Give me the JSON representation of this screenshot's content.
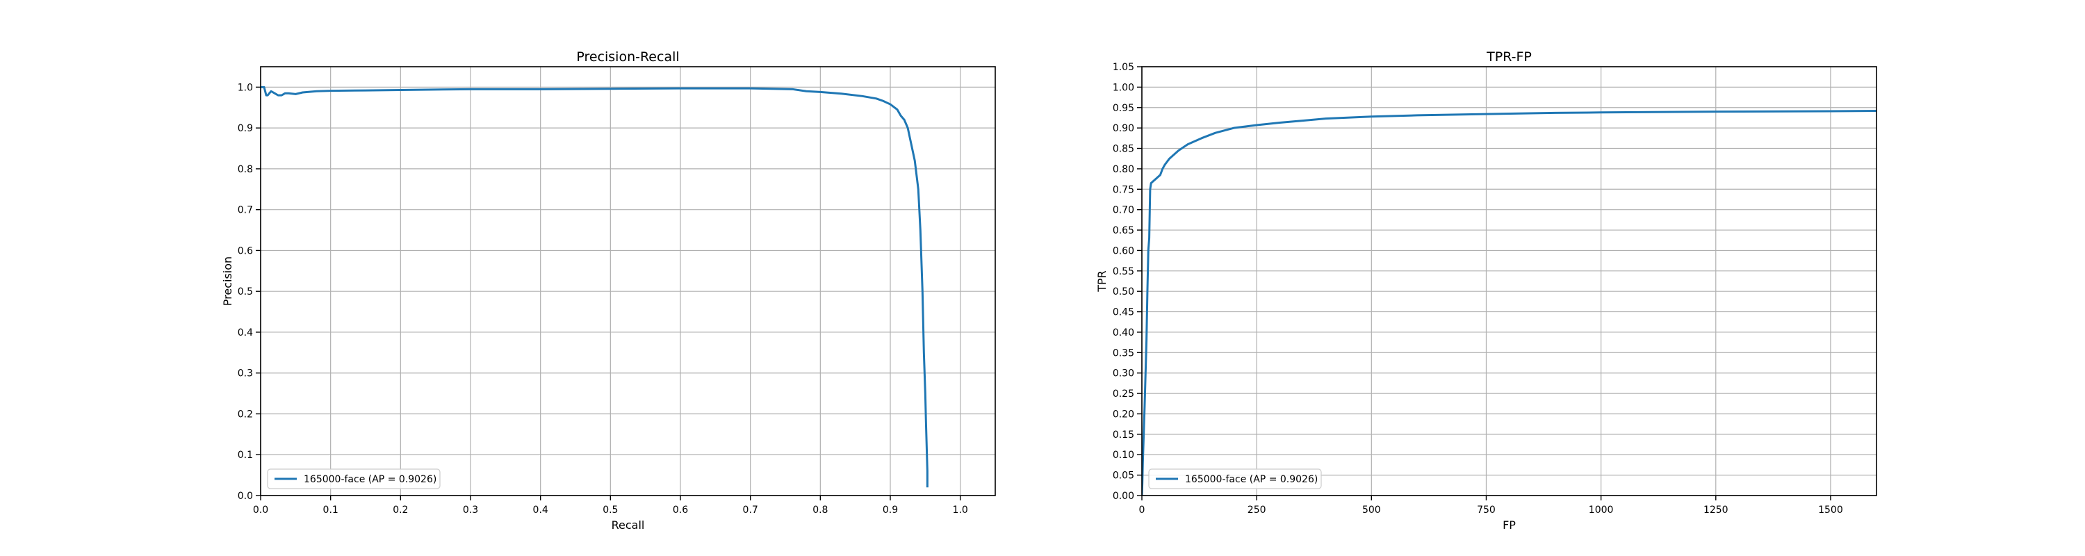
{
  "chart_data": [
    {
      "type": "line",
      "title": "Precision-Recall",
      "xlabel": "Recall",
      "ylabel": "Precision",
      "xlim": [
        0.0,
        1.05
      ],
      "ylim": [
        0.0,
        1.05
      ],
      "x_ticks": [
        0.0,
        0.1,
        0.2,
        0.3,
        0.4,
        0.5,
        0.6,
        0.7,
        0.8,
        0.9,
        1.0
      ],
      "y_ticks": [
        0.0,
        0.1,
        0.2,
        0.3,
        0.4,
        0.5,
        0.6,
        0.7,
        0.8,
        0.9,
        1.0
      ],
      "tick_decimals": 1,
      "grid": true,
      "legend_position": "lower-left",
      "series": [
        {
          "name": "165000-face (AP = 0.9026)",
          "color": "#1f77b4",
          "x": [
            0.0,
            0.005,
            0.008,
            0.01,
            0.015,
            0.02,
            0.025,
            0.03,
            0.035,
            0.04,
            0.05,
            0.06,
            0.08,
            0.1,
            0.15,
            0.2,
            0.3,
            0.4,
            0.5,
            0.6,
            0.7,
            0.76,
            0.78,
            0.8,
            0.83,
            0.86,
            0.88,
            0.89,
            0.9,
            0.91,
            0.915,
            0.92,
            0.925,
            0.93,
            0.935,
            0.94,
            0.943,
            0.946,
            0.948,
            0.95,
            0.951,
            0.952,
            0.953,
            0.953
          ],
          "y": [
            1.0,
            1.0,
            0.98,
            0.98,
            0.99,
            0.985,
            0.98,
            0.98,
            0.985,
            0.985,
            0.983,
            0.987,
            0.99,
            0.991,
            0.992,
            0.993,
            0.995,
            0.995,
            0.996,
            0.997,
            0.997,
            0.995,
            0.99,
            0.988,
            0.984,
            0.978,
            0.972,
            0.966,
            0.958,
            0.945,
            0.93,
            0.92,
            0.9,
            0.86,
            0.82,
            0.75,
            0.65,
            0.5,
            0.35,
            0.25,
            0.18,
            0.12,
            0.06,
            0.02
          ]
        }
      ]
    },
    {
      "type": "line",
      "title": "TPR-FP",
      "xlabel": "FP",
      "ylabel": "TPR",
      "xlim": [
        0,
        1600
      ],
      "ylim": [
        0.0,
        1.05
      ],
      "x_ticks": [
        0,
        250,
        500,
        750,
        1000,
        1250,
        1500
      ],
      "y_ticks": [
        0.0,
        0.05,
        0.1,
        0.15,
        0.2,
        0.25,
        0.3,
        0.35,
        0.4,
        0.45,
        0.5,
        0.55,
        0.6,
        0.65,
        0.7,
        0.75,
        0.8,
        0.85,
        0.9,
        0.95,
        1.0,
        1.05
      ],
      "x_tick_decimals": 0,
      "y_tick_decimals": 2,
      "grid": true,
      "legend_position": "lower-left",
      "series": [
        {
          "name": "165000-face (AP = 0.9026)",
          "color": "#1f77b4",
          "x": [
            0,
            1,
            2,
            4,
            6,
            8,
            10,
            12,
            14,
            16,
            18,
            20,
            25,
            30,
            35,
            40,
            45,
            50,
            60,
            70,
            80,
            100,
            130,
            160,
            200,
            250,
            300,
            350,
            400,
            500,
            600,
            750,
            900,
            1000,
            1250,
            1500,
            1600
          ],
          "y": [
            0.0,
            0.03,
            0.08,
            0.15,
            0.22,
            0.3,
            0.38,
            0.5,
            0.6,
            0.63,
            0.75,
            0.765,
            0.77,
            0.775,
            0.78,
            0.785,
            0.8,
            0.81,
            0.825,
            0.835,
            0.845,
            0.86,
            0.875,
            0.888,
            0.9,
            0.907,
            0.913,
            0.918,
            0.923,
            0.928,
            0.931,
            0.934,
            0.937,
            0.938,
            0.94,
            0.941,
            0.942
          ]
        }
      ]
    }
  ]
}
